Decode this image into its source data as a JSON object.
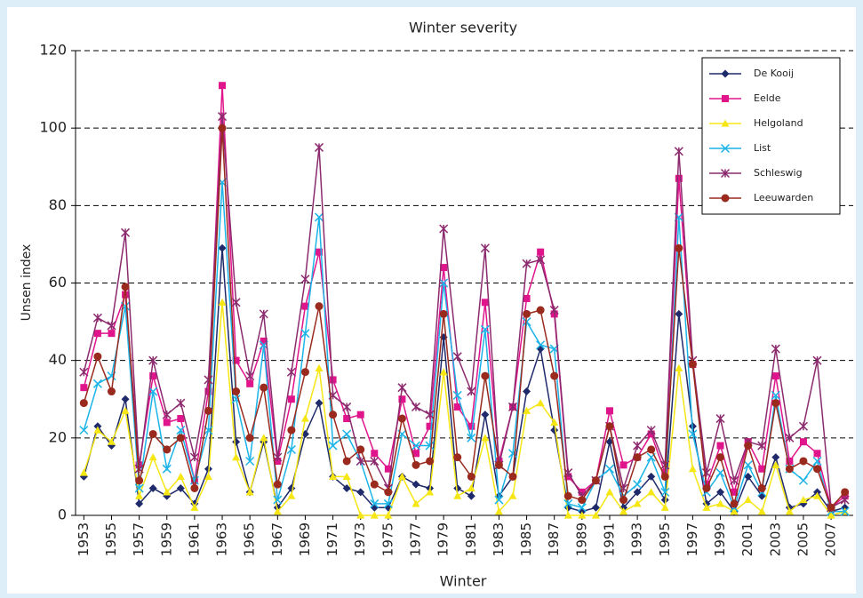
{
  "chart_data": {
    "type": "line",
    "title": "Winter severity",
    "xlabel": "Winter",
    "ylabel": "Unsen index",
    "x": [
      1953,
      1954,
      1955,
      1956,
      1957,
      1958,
      1959,
      1960,
      1961,
      1962,
      1963,
      1964,
      1965,
      1966,
      1967,
      1968,
      1969,
      1970,
      1971,
      1972,
      1973,
      1974,
      1975,
      1976,
      1977,
      1978,
      1979,
      1980,
      1981,
      1982,
      1983,
      1984,
      1985,
      1986,
      1987,
      1988,
      1989,
      1990,
      1991,
      1992,
      1993,
      1994,
      1995,
      1996,
      1997,
      1998,
      1999,
      2000,
      2001,
      2002,
      2003,
      2004,
      2005,
      2006,
      2007,
      2008
    ],
    "xlim": [
      1952.4,
      2008.6
    ],
    "xticks": [
      1953,
      1955,
      1957,
      1959,
      1961,
      1963,
      1965,
      1967,
      1969,
      1971,
      1973,
      1975,
      1977,
      1979,
      1981,
      1983,
      1985,
      1987,
      1989,
      1991,
      1993,
      1995,
      1997,
      1999,
      2001,
      2003,
      2005,
      2007
    ],
    "ylim": [
      0,
      120
    ],
    "yticks": [
      0,
      20,
      40,
      60,
      80,
      100,
      120
    ],
    "grid": true,
    "legend": "upper right",
    "series": [
      {
        "name": "De Kooij",
        "color": "#1f2a6b",
        "marker": "diamond",
        "values": [
          10,
          23,
          18,
          30,
          3,
          7,
          5,
          7,
          3,
          12,
          69,
          19,
          6,
          19,
          2,
          7,
          21,
          29,
          10,
          7,
          6,
          2,
          2,
          10,
          8,
          7,
          46,
          7,
          5,
          26,
          5,
          10,
          32,
          43,
          22,
          2,
          1,
          2,
          19,
          2,
          6,
          10,
          4,
          52,
          23,
          3,
          6,
          1,
          10,
          5,
          15,
          2,
          3,
          6,
          1,
          2
        ]
      },
      {
        "name": "Eelde",
        "color": "#e0158c",
        "marker": "square",
        "values": [
          33,
          47,
          47,
          57,
          13,
          36,
          24,
          25,
          9,
          32,
          111,
          40,
          34,
          45,
          14,
          30,
          54,
          68,
          35,
          25,
          26,
          16,
          12,
          30,
          16,
          23,
          64,
          28,
          23,
          55,
          14,
          28,
          56,
          68,
          52,
          10,
          6,
          9,
          27,
          13,
          15,
          21,
          11,
          87,
          39,
          8,
          18,
          6,
          19,
          12,
          36,
          14,
          19,
          16,
          2,
          5
        ]
      },
      {
        "name": "Helgoland",
        "color": "#f5e614",
        "marker": "triangle",
        "values": [
          11,
          22,
          19,
          27,
          5,
          15,
          6,
          10,
          2,
          10,
          55,
          15,
          6,
          20,
          1,
          5,
          25,
          38,
          10,
          10,
          0,
          0,
          0,
          10,
          3,
          6,
          37,
          5,
          7,
          20,
          1,
          5,
          27,
          29,
          24,
          0,
          0,
          0,
          6,
          1,
          3,
          6,
          2,
          38,
          12,
          2,
          3,
          1,
          4,
          1,
          13,
          1,
          4,
          5,
          0,
          1
        ]
      },
      {
        "name": "List",
        "color": "#1cb4e8",
        "marker": "x",
        "values": [
          22,
          34,
          36,
          54,
          7,
          32,
          12,
          22,
          9,
          22,
          86,
          30,
          14,
          44,
          4,
          17,
          47,
          77,
          18,
          21,
          14,
          3,
          3,
          21,
          18,
          18,
          60,
          31,
          20,
          48,
          4,
          16,
          50,
          44,
          43,
          3,
          2,
          9,
          12,
          5,
          8,
          15,
          6,
          77,
          21,
          6,
          11,
          2,
          13,
          6,
          31,
          12,
          9,
          14,
          1,
          1
        ]
      },
      {
        "name": "Schleswig",
        "color": "#8c2a6e",
        "marker": "star",
        "values": [
          37,
          51,
          49,
          73,
          12,
          40,
          26,
          29,
          15,
          35,
          103,
          55,
          36,
          52,
          15,
          37,
          61,
          95,
          31,
          28,
          14,
          14,
          7,
          33,
          28,
          26,
          74,
          41,
          32,
          69,
          13,
          28,
          65,
          66,
          53,
          11,
          5,
          9,
          23,
          7,
          18,
          22,
          13,
          94,
          40,
          11,
          25,
          9,
          19,
          18,
          43,
          20,
          23,
          40,
          2,
          4
        ]
      },
      {
        "name": "Leeuwarden",
        "color": "#9a2a1e",
        "marker": "circle",
        "values": [
          29,
          41,
          32,
          59,
          9,
          21,
          17,
          20,
          7,
          27,
          100,
          32,
          20,
          33,
          8,
          22,
          37,
          54,
          26,
          14,
          17,
          8,
          6,
          25,
          13,
          14,
          52,
          15,
          10,
          36,
          13,
          10,
          52,
          53,
          36,
          5,
          4,
          9,
          23,
          4,
          15,
          17,
          10,
          69,
          39,
          7,
          15,
          3,
          18,
          7,
          29,
          12,
          14,
          12,
          2,
          6
        ]
      }
    ]
  }
}
